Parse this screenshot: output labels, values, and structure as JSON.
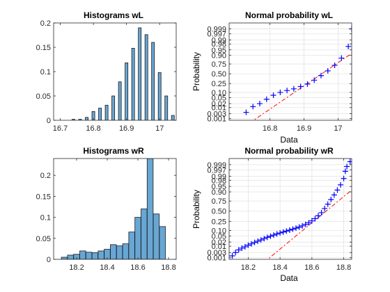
{
  "figure": {
    "background": "#ffffff",
    "bar_color": "#68a6d4",
    "bar_edge_color": "#1a1a1a",
    "prob_marker_color": "#0000ff",
    "ref_line_color": "#ff0000",
    "grid_color": "#e3e3e3"
  },
  "chart_data": [
    {
      "type": "bar",
      "title": "Histograms wL",
      "xlabel": "",
      "ylabel": "",
      "xlim": [
        16.68,
        17.05
      ],
      "ylim": [
        0,
        0.2
      ],
      "xticks": [
        16.7,
        16.8,
        16.9,
        17
      ],
      "xtick_labels": [
        "16.7",
        "16.8",
        "16.9",
        "17"
      ],
      "yticks": [
        0,
        0.05,
        0.1,
        0.15,
        0.2
      ],
      "ytick_labels": [
        "0",
        "0.05",
        "0.1",
        "0.15",
        "0.2"
      ],
      "bin_width": 0.0085,
      "bins": [
        {
          "x": 16.74,
          "value": 0.002
        },
        {
          "x": 16.76,
          "value": 0.002
        },
        {
          "x": 16.78,
          "value": 0.006
        },
        {
          "x": 16.8,
          "value": 0.018
        },
        {
          "x": 16.82,
          "value": 0.025
        },
        {
          "x": 16.84,
          "value": 0.031
        },
        {
          "x": 16.86,
          "value": 0.05
        },
        {
          "x": 16.88,
          "value": 0.079
        },
        {
          "x": 16.9,
          "value": 0.118
        },
        {
          "x": 16.92,
          "value": 0.148
        },
        {
          "x": 16.94,
          "value": 0.19
        },
        {
          "x": 16.96,
          "value": 0.176
        },
        {
          "x": 16.98,
          "value": 0.16
        },
        {
          "x": 17.0,
          "value": 0.098
        },
        {
          "x": 17.02,
          "value": 0.05
        },
        {
          "x": 17.04,
          "value": 0.01
        }
      ]
    },
    {
      "type": "scatter",
      "title": "Normal probability wL",
      "xlabel": "Data",
      "ylabel": "Probability",
      "xlim": [
        16.68,
        17.04
      ],
      "xticks": [
        16.8,
        16.9,
        17
      ],
      "xtick_labels": [
        "16.8",
        "16.9",
        "17"
      ],
      "yscale": "normal-probability",
      "yticks": [
        0.001,
        0.003,
        0.01,
        0.02,
        0.05,
        0.1,
        0.25,
        0.5,
        0.75,
        0.9,
        0.95,
        0.98,
        0.99,
        0.997,
        0.999
      ],
      "ytick_labels": [
        "0.001",
        "0.003",
        "0.01",
        "0.02",
        "0.05",
        "0.10",
        "0.25",
        "0.50",
        "0.75",
        "0.90",
        "0.95",
        "0.98",
        "0.99",
        "0.997",
        "0.999"
      ],
      "y_min_z": -3.2,
      "y_max_z": 3.5,
      "grid": true,
      "reference_line": {
        "x0": 16.74,
        "x1": 17.04,
        "p0": 0.00035,
        "p1": 0.92
      },
      "points": [
        {
          "x": 16.69,
          "p": 0.0003
        },
        {
          "x": 16.73,
          "p": 0.004
        },
        {
          "x": 16.75,
          "p": 0.012
        },
        {
          "x": 16.77,
          "p": 0.02
        },
        {
          "x": 16.79,
          "p": 0.04
        },
        {
          "x": 16.81,
          "p": 0.07
        },
        {
          "x": 16.83,
          "p": 0.1
        },
        {
          "x": 16.85,
          "p": 0.125
        },
        {
          "x": 16.87,
          "p": 0.15
        },
        {
          "x": 16.89,
          "p": 0.19
        },
        {
          "x": 16.91,
          "p": 0.24
        },
        {
          "x": 16.93,
          "p": 0.33
        },
        {
          "x": 16.95,
          "p": 0.45
        },
        {
          "x": 16.97,
          "p": 0.58
        },
        {
          "x": 16.99,
          "p": 0.72
        },
        {
          "x": 17.01,
          "p": 0.86
        },
        {
          "x": 17.03,
          "p": 0.97
        },
        {
          "x": 17.04,
          "p": 0.999
        }
      ]
    },
    {
      "type": "bar",
      "title": "Histograms wR",
      "xlabel": "",
      "ylabel": "",
      "xlim": [
        18.05,
        18.85
      ],
      "ylim": [
        0,
        0.24
      ],
      "xticks": [
        18.2,
        18.4,
        18.6,
        18.8
      ],
      "xtick_labels": [
        "18.2",
        "18.4",
        "18.6",
        "18.8"
      ],
      "yticks": [
        0,
        0.05,
        0.1,
        0.15,
        0.2
      ],
      "ytick_labels": [
        "0",
        "0.05",
        "0.1",
        "0.15",
        "0.2"
      ],
      "bin_width": 0.039,
      "bins": [
        {
          "x": 18.12,
          "value": 0.005
        },
        {
          "x": 18.16,
          "value": 0.01
        },
        {
          "x": 18.2,
          "value": 0.012
        },
        {
          "x": 18.24,
          "value": 0.02
        },
        {
          "x": 18.28,
          "value": 0.017
        },
        {
          "x": 18.32,
          "value": 0.016
        },
        {
          "x": 18.36,
          "value": 0.02
        },
        {
          "x": 18.4,
          "value": 0.024
        },
        {
          "x": 18.44,
          "value": 0.035
        },
        {
          "x": 18.48,
          "value": 0.032
        },
        {
          "x": 18.52,
          "value": 0.037
        },
        {
          "x": 18.56,
          "value": 0.065
        },
        {
          "x": 18.6,
          "value": 0.1
        },
        {
          "x": 18.64,
          "value": 0.12
        },
        {
          "x": 18.68,
          "value": 0.24
        },
        {
          "x": 18.72,
          "value": 0.108
        },
        {
          "x": 18.76,
          "value": 0.078
        }
      ]
    },
    {
      "type": "scatter",
      "title": "Normal probability wR",
      "xlabel": "Data",
      "ylabel": "Probability",
      "xlim": [
        18.08,
        18.85
      ],
      "xticks": [
        18.2,
        18.4,
        18.6,
        18.8
      ],
      "xtick_labels": [
        "18.2",
        "18.4",
        "18.6",
        "18.8"
      ],
      "yscale": "normal-probability",
      "yticks": [
        0.001,
        0.003,
        0.01,
        0.02,
        0.05,
        0.1,
        0.25,
        0.5,
        0.75,
        0.9,
        0.95,
        0.98,
        0.99,
        0.997,
        0.999
      ],
      "ytick_labels": [
        "0.001",
        "0.003",
        "0.01",
        "0.02",
        "0.05",
        "0.10",
        "0.25",
        "0.50",
        "0.75",
        "0.90",
        "0.95",
        "0.98",
        "0.99",
        "0.997",
        "0.999"
      ],
      "y_min_z": -3.2,
      "y_max_z": 3.5,
      "grid": true,
      "reference_line": {
        "x0": 18.3,
        "x1": 18.85,
        "p0": 0.00035,
        "p1": 0.92
      },
      "points": [
        {
          "x": 18.09,
          "p": 0.0004
        },
        {
          "x": 18.1,
          "p": 0.0015
        },
        {
          "x": 18.12,
          "p": 0.003
        },
        {
          "x": 18.14,
          "p": 0.005
        },
        {
          "x": 18.16,
          "p": 0.007
        },
        {
          "x": 18.18,
          "p": 0.009
        },
        {
          "x": 18.2,
          "p": 0.012
        },
        {
          "x": 18.22,
          "p": 0.015
        },
        {
          "x": 18.24,
          "p": 0.019
        },
        {
          "x": 18.26,
          "p": 0.023
        },
        {
          "x": 18.28,
          "p": 0.028
        },
        {
          "x": 18.3,
          "p": 0.034
        },
        {
          "x": 18.32,
          "p": 0.041
        },
        {
          "x": 18.34,
          "p": 0.048
        },
        {
          "x": 18.36,
          "p": 0.056
        },
        {
          "x": 18.38,
          "p": 0.065
        },
        {
          "x": 18.4,
          "p": 0.074
        },
        {
          "x": 18.42,
          "p": 0.083
        },
        {
          "x": 18.44,
          "p": 0.093
        },
        {
          "x": 18.46,
          "p": 0.104
        },
        {
          "x": 18.48,
          "p": 0.116
        },
        {
          "x": 18.5,
          "p": 0.13
        },
        {
          "x": 18.52,
          "p": 0.145
        },
        {
          "x": 18.54,
          "p": 0.165
        },
        {
          "x": 18.56,
          "p": 0.19
        },
        {
          "x": 18.58,
          "p": 0.22
        },
        {
          "x": 18.6,
          "p": 0.26
        },
        {
          "x": 18.62,
          "p": 0.31
        },
        {
          "x": 18.64,
          "p": 0.38
        },
        {
          "x": 18.66,
          "p": 0.46
        },
        {
          "x": 18.68,
          "p": 0.57
        },
        {
          "x": 18.7,
          "p": 0.68
        },
        {
          "x": 18.72,
          "p": 0.78
        },
        {
          "x": 18.74,
          "p": 0.86
        },
        {
          "x": 18.76,
          "p": 0.92
        },
        {
          "x": 18.78,
          "p": 0.96
        },
        {
          "x": 18.8,
          "p": 0.985
        },
        {
          "x": 18.81,
          "p": 0.996
        },
        {
          "x": 18.82,
          "p": 0.9985
        },
        {
          "x": 18.84,
          "p": 0.9995
        }
      ]
    }
  ]
}
